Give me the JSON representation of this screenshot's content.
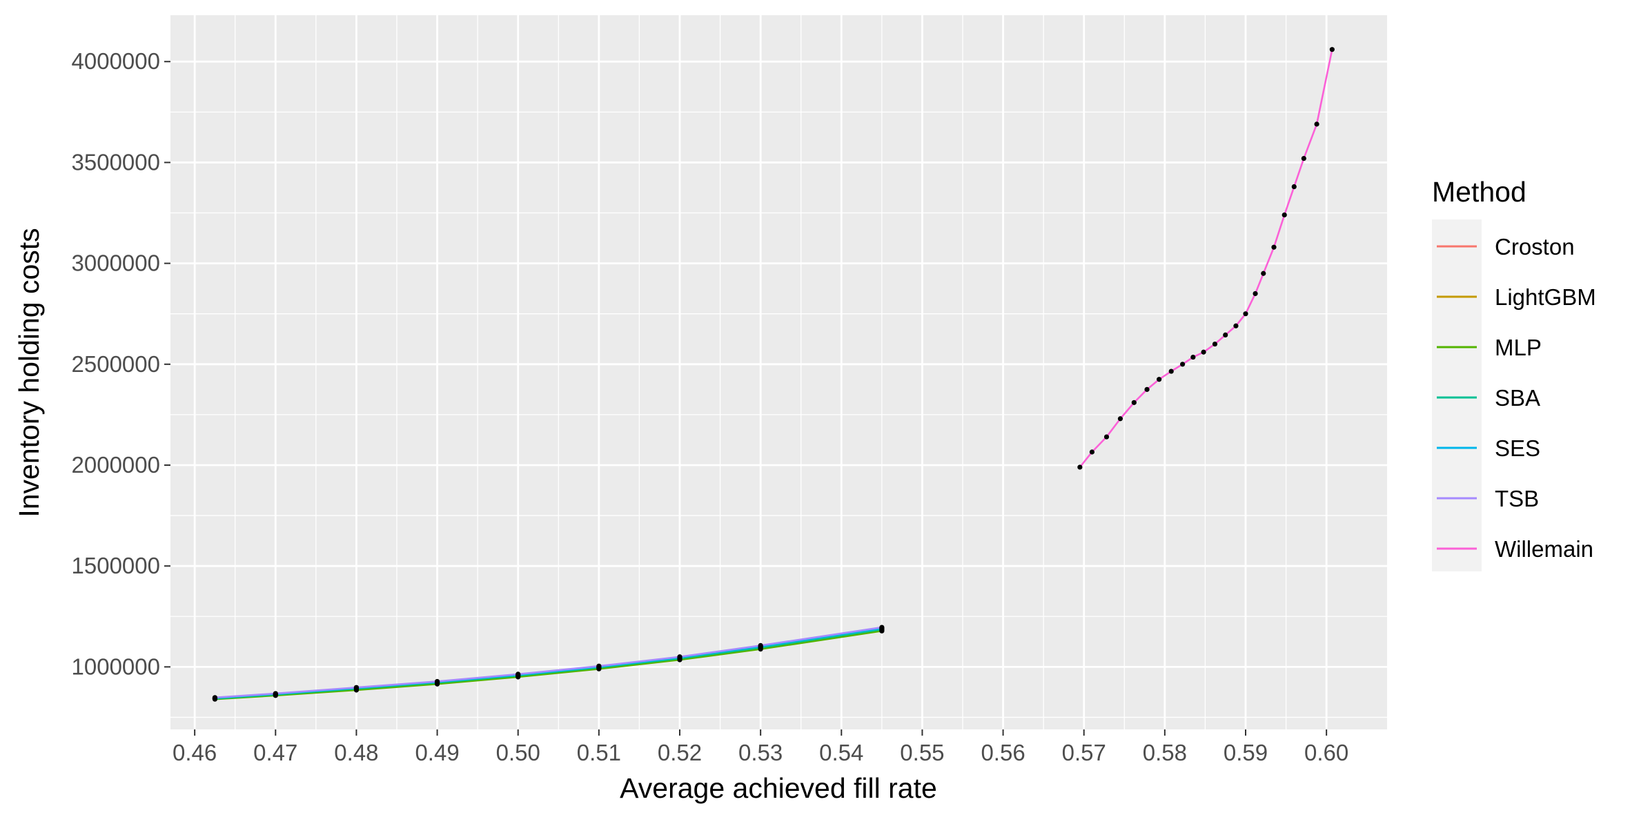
{
  "chart_data": {
    "type": "line",
    "xlabel": "Average achieved fill rate",
    "ylabel": "Inventory holding costs",
    "xlim": [
      0.457,
      0.6075
    ],
    "ylim": [
      690000,
      4230000
    ],
    "x_ticks": [
      0.46,
      0.47,
      0.48,
      0.49,
      0.5,
      0.51,
      0.52,
      0.53,
      0.54,
      0.55,
      0.56,
      0.57,
      0.58,
      0.59,
      0.6
    ],
    "x_tick_labels": [
      "0.46",
      "0.47",
      "0.48",
      "0.49",
      "0.50",
      "0.51",
      "0.52",
      "0.53",
      "0.54",
      "0.55",
      "0.56",
      "0.57",
      "0.58",
      "0.59",
      "0.60"
    ],
    "y_ticks": [
      1000000,
      1500000,
      2000000,
      2500000,
      3000000,
      3500000,
      4000000
    ],
    "y_tick_labels": [
      "1000000",
      "1500000",
      "2000000",
      "2500000",
      "3000000",
      "3500000",
      "4000000"
    ],
    "grid": true,
    "legend": {
      "title": "Method",
      "placement": "right"
    },
    "series": [
      {
        "name": "Croston",
        "color": "#F8766D",
        "x": [
          0.4625,
          0.47,
          0.48,
          0.49,
          0.5,
          0.51,
          0.52,
          0.53,
          0.545
        ],
        "y": [
          845000,
          865000,
          895000,
          925000,
          960000,
          1000000,
          1045000,
          1100000,
          1190000
        ]
      },
      {
        "name": "LightGBM",
        "color": "#C49A00",
        "x": [
          0.4625,
          0.47,
          0.48,
          0.49,
          0.5,
          0.51,
          0.52,
          0.53,
          0.545
        ],
        "y": [
          842000,
          862000,
          890000,
          920000,
          955000,
          995000,
          1040000,
          1093000,
          1182000
        ]
      },
      {
        "name": "MLP",
        "color": "#53B400",
        "x": [
          0.4625,
          0.47,
          0.48,
          0.49,
          0.5,
          0.51,
          0.52,
          0.53,
          0.545
        ],
        "y": [
          840000,
          858000,
          885000,
          915000,
          950000,
          990000,
          1035000,
          1088000,
          1178000
        ]
      },
      {
        "name": "SBA",
        "color": "#00C094",
        "x": [
          0.4625,
          0.47,
          0.48,
          0.49,
          0.5,
          0.51,
          0.52,
          0.53,
          0.545
        ],
        "y": [
          843000,
          863000,
          892000,
          922000,
          957000,
          997000,
          1042000,
          1096000,
          1186000
        ]
      },
      {
        "name": "SES",
        "color": "#00B6EB",
        "x": [
          0.4625,
          0.47,
          0.48,
          0.49,
          0.5,
          0.51,
          0.52,
          0.53,
          0.545
        ],
        "y": [
          846000,
          866000,
          896000,
          926000,
          961000,
          1001000,
          1047000,
          1102000,
          1192000
        ]
      },
      {
        "name": "TSB",
        "color": "#A58AFF",
        "x": [
          0.4625,
          0.47,
          0.48,
          0.49,
          0.5,
          0.51,
          0.52,
          0.53,
          0.545
        ],
        "y": [
          848000,
          868000,
          898000,
          928000,
          964000,
          1004000,
          1050000,
          1106000,
          1196000
        ]
      },
      {
        "name": "Willemain",
        "color": "#FB61D7",
        "x": [
          0.5695,
          0.571,
          0.5728,
          0.5745,
          0.5762,
          0.5778,
          0.5793,
          0.5808,
          0.5822,
          0.5835,
          0.5848,
          0.5862,
          0.5875,
          0.5888,
          0.59,
          0.5912,
          0.5922,
          0.5935,
          0.5948,
          0.596,
          0.5972,
          0.5988,
          0.6007
        ],
        "y": [
          1990000,
          2065000,
          2140000,
          2230000,
          2310000,
          2375000,
          2425000,
          2465000,
          2500000,
          2535000,
          2560000,
          2600000,
          2645000,
          2690000,
          2750000,
          2850000,
          2950000,
          3080000,
          3240000,
          3380000,
          3520000,
          3690000,
          4060000
        ]
      }
    ]
  }
}
